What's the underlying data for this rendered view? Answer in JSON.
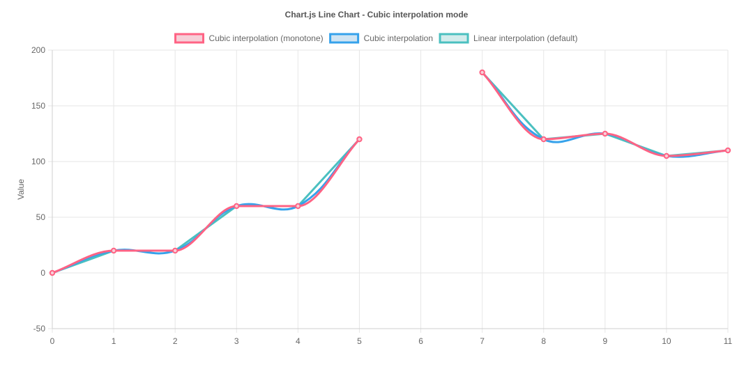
{
  "chart_data": {
    "type": "line",
    "title": "Chart.js Line Chart - Cubic interpolation mode",
    "ylabel": "Value",
    "xlabel": "",
    "x": [
      0,
      1,
      2,
      3,
      4,
      5,
      6,
      7,
      8,
      9,
      10,
      11
    ],
    "x_tick_labels": [
      "0",
      "1",
      "2",
      "3",
      "4",
      "5",
      "6",
      "7",
      "8",
      "9",
      "10",
      "11"
    ],
    "ylim": [
      -50,
      200
    ],
    "y_ticks": [
      -50,
      0,
      50,
      100,
      150,
      200
    ],
    "y_tick_labels": [
      "-50",
      "0",
      "50",
      "100",
      "150",
      "200"
    ],
    "grid": true,
    "legend_position": "top-center",
    "series": [
      {
        "name": "Cubic interpolation (monotone)",
        "color": "#ff6384",
        "fill": "#f6cfd8",
        "interpolation": "monotone",
        "values": [
          0,
          20,
          20,
          60,
          60,
          120,
          null,
          180,
          120,
          125,
          105,
          110
        ]
      },
      {
        "name": "Cubic interpolation",
        "color": "#36a2eb",
        "fill": "#cfe4f3",
        "interpolation": "cubic",
        "values": [
          0,
          20,
          20,
          60,
          60,
          120,
          null,
          180,
          120,
          125,
          105,
          110
        ]
      },
      {
        "name": "Linear interpolation (default)",
        "color": "#4bc0c0",
        "fill": "#d3ecec",
        "interpolation": "linear",
        "values": [
          0,
          20,
          20,
          60,
          60,
          120,
          null,
          180,
          120,
          125,
          105,
          110
        ]
      }
    ]
  }
}
